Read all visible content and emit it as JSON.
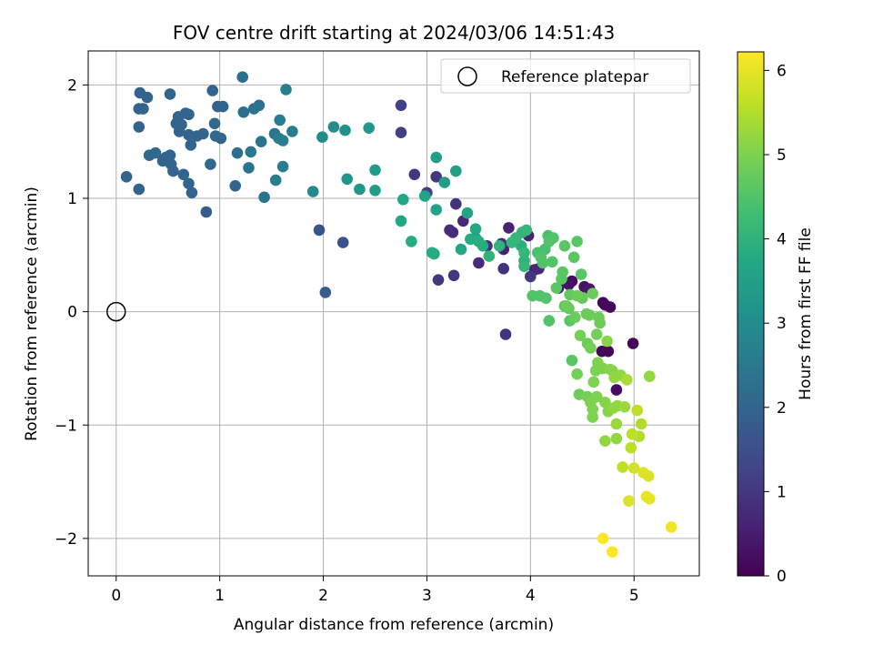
{
  "chart_data": {
    "type": "scatter",
    "title": "FOV centre drift starting at 2024/03/06 14:51:43",
    "xlabel": "Angular distance from reference (arcmin)",
    "ylabel": "Rotation from reference (arcmin)",
    "xlim": [
      -0.27,
      5.63
    ],
    "ylim": [
      -2.33,
      2.3
    ],
    "xticks": [
      0,
      1,
      2,
      3,
      4,
      5
    ],
    "yticks": [
      -2,
      -1,
      0,
      1,
      2
    ],
    "xtick_labels": [
      "0",
      "1",
      "2",
      "3",
      "4",
      "5"
    ],
    "ytick_labels": [
      "−2",
      "−1",
      "0",
      "1",
      "2"
    ],
    "grid": true,
    "colormap": "viridis",
    "colorbar": {
      "label": "Hours from first FF file",
      "range": [
        0,
        6.22
      ],
      "ticks": [
        0,
        1,
        2,
        3,
        4,
        5,
        6
      ],
      "tick_labels": [
        "0",
        "1",
        "2",
        "3",
        "4",
        "5",
        "6"
      ]
    },
    "legend": {
      "position": "upper right",
      "entries": [
        "Reference platepar"
      ]
    },
    "reference_point": {
      "x": 0,
      "y": 0
    },
    "points": [
      [
        0.1,
        1.19,
        2.0
      ],
      [
        0.22,
        1.08,
        2.0
      ],
      [
        0.22,
        1.79,
        2.0
      ],
      [
        0.23,
        1.93,
        2.0
      ],
      [
        0.22,
        1.63,
        2.0
      ],
      [
        0.26,
        1.79,
        2.0
      ],
      [
        0.3,
        1.89,
        2.0
      ],
      [
        0.32,
        1.38,
        2.1
      ],
      [
        0.38,
        1.4,
        2.1
      ],
      [
        0.45,
        1.33,
        2.0
      ],
      [
        0.48,
        1.36,
        2.0
      ],
      [
        0.52,
        1.92,
        2.0
      ],
      [
        0.52,
        1.38,
        2.0
      ],
      [
        0.53,
        1.3,
        2.0
      ],
      [
        0.55,
        1.24,
        2.0
      ],
      [
        0.58,
        1.66,
        2.0
      ],
      [
        0.6,
        1.72,
        2.0
      ],
      [
        0.61,
        1.59,
        2.0
      ],
      [
        0.63,
        1.65,
        2.0
      ],
      [
        0.65,
        1.21,
        2.0
      ],
      [
        0.67,
        1.75,
        2.0
      ],
      [
        0.7,
        1.56,
        2.0
      ],
      [
        0.7,
        1.13,
        2.0
      ],
      [
        0.7,
        1.74,
        2.0
      ],
      [
        0.72,
        1.47,
        2.0
      ],
      [
        0.73,
        1.05,
        2.0
      ],
      [
        0.78,
        1.55,
        2.0
      ],
      [
        0.84,
        1.57,
        2.0
      ],
      [
        0.87,
        0.88,
        1.8
      ],
      [
        0.91,
        1.3,
        2.1
      ],
      [
        0.93,
        1.95,
        2.0
      ],
      [
        0.95,
        1.66,
        2.1
      ],
      [
        0.96,
        1.55,
        2.1
      ],
      [
        0.98,
        1.81,
        2.0
      ],
      [
        1.01,
        1.53,
        2.0
      ],
      [
        1.03,
        1.81,
        2.0
      ],
      [
        1.15,
        1.11,
        2.0
      ],
      [
        1.17,
        1.4,
        2.3
      ],
      [
        1.22,
        2.07,
        2.3
      ],
      [
        1.23,
        1.76,
        2.3
      ],
      [
        1.28,
        1.27,
        2.4
      ],
      [
        1.3,
        1.41,
        2.5
      ],
      [
        1.33,
        1.79,
        2.4
      ],
      [
        1.38,
        1.82,
        2.4
      ],
      [
        1.4,
        1.5,
        2.4
      ],
      [
        1.43,
        1.01,
        2.4
      ],
      [
        1.53,
        1.57,
        2.4
      ],
      [
        1.54,
        1.16,
        2.6
      ],
      [
        1.57,
        1.53,
        2.6
      ],
      [
        1.58,
        1.69,
        2.6
      ],
      [
        1.61,
        1.51,
        2.6
      ],
      [
        1.61,
        1.28,
        2.6
      ],
      [
        1.64,
        1.96,
        2.6
      ],
      [
        1.7,
        1.59,
        2.6
      ],
      [
        1.9,
        1.06,
        2.9
      ],
      [
        1.96,
        0.72,
        1.6
      ],
      [
        1.99,
        1.54,
        3.0
      ],
      [
        2.02,
        0.17,
        1.8
      ],
      [
        2.1,
        1.63,
        3.0
      ],
      [
        2.19,
        0.61,
        1.6
      ],
      [
        2.21,
        1.6,
        3.1
      ],
      [
        2.23,
        1.17,
        3.2
      ],
      [
        2.35,
        1.08,
        3.3
      ],
      [
        2.44,
        1.62,
        3.3
      ],
      [
        2.5,
        1.25,
        3.4
      ],
      [
        2.5,
        1.07,
        3.4
      ],
      [
        2.75,
        1.82,
        1.2
      ],
      [
        2.75,
        1.58,
        1.2
      ],
      [
        2.75,
        0.8,
        3.7
      ],
      [
        2.77,
        0.99,
        3.7
      ],
      [
        2.85,
        0.62,
        3.8
      ],
      [
        2.88,
        1.21,
        1.0
      ],
      [
        2.98,
        1.02,
        3.6
      ],
      [
        3.0,
        1.05,
        1.2
      ],
      [
        3.05,
        0.52,
        3.8
      ],
      [
        3.07,
        0.51,
        3.8
      ],
      [
        3.09,
        1.36,
        3.5
      ],
      [
        3.09,
        1.19,
        1.0
      ],
      [
        3.09,
        0.9,
        3.6
      ],
      [
        3.11,
        0.28,
        1.0
      ],
      [
        3.17,
        1.14,
        3.4
      ],
      [
        3.22,
        0.72,
        0.8
      ],
      [
        3.25,
        0.7,
        0.8
      ],
      [
        3.26,
        0.32,
        1.0
      ],
      [
        3.28,
        1.24,
        3.5
      ],
      [
        3.28,
        0.95,
        0.9
      ],
      [
        3.33,
        0.55,
        3.7
      ],
      [
        3.35,
        0.8,
        0.7
      ],
      [
        3.39,
        0.87,
        3.6
      ],
      [
        3.42,
        0.64,
        3.8
      ],
      [
        3.47,
        0.73,
        3.7
      ],
      [
        3.47,
        0.65,
        3.7
      ],
      [
        3.5,
        0.62,
        3.9
      ],
      [
        3.5,
        0.43,
        0.8
      ],
      [
        3.54,
        0.58,
        3.8
      ],
      [
        3.58,
        0.58,
        0.8
      ],
      [
        3.6,
        0.49,
        4.0
      ],
      [
        3.7,
        0.58,
        4.0
      ],
      [
        3.72,
        0.6,
        0.8
      ],
      [
        3.74,
        0.55,
        0.6
      ],
      [
        3.74,
        0.38,
        0.9
      ],
      [
        3.76,
        -0.2,
        0.9
      ],
      [
        3.79,
        0.74,
        0.6
      ],
      [
        3.82,
        0.61,
        4.1
      ],
      [
        3.86,
        0.65,
        4.1
      ],
      [
        3.91,
        0.58,
        3.9
      ],
      [
        3.92,
        0.7,
        4.0
      ],
      [
        3.94,
        0.45,
        4.0
      ],
      [
        3.94,
        0.52,
        4.1
      ],
      [
        3.94,
        0.4,
        4.1
      ],
      [
        3.96,
        0.72,
        4.1
      ],
      [
        3.98,
        0.67,
        0.6
      ],
      [
        4.0,
        0.31,
        1.0
      ],
      [
        4.02,
        0.14,
        4.5
      ],
      [
        4.04,
        0.37,
        0.6
      ],
      [
        4.07,
        0.52,
        4.4
      ],
      [
        4.08,
        0.38,
        0.7
      ],
      [
        4.09,
        0.14,
        4.5
      ],
      [
        4.1,
        0.48,
        4.5
      ],
      [
        4.12,
        0.43,
        4.5
      ],
      [
        4.14,
        0.55,
        4.4
      ],
      [
        4.15,
        0.12,
        4.5
      ],
      [
        4.17,
        0.67,
        4.4
      ],
      [
        4.18,
        0.62,
        4.5
      ],
      [
        4.18,
        -0.08,
        4.5
      ],
      [
        4.21,
        0.44,
        4.5
      ],
      [
        4.22,
        0.65,
        4.5
      ],
      [
        4.25,
        0.21,
        4.6
      ],
      [
        4.27,
        0.21,
        0.4
      ],
      [
        4.3,
        0.29,
        4.6
      ],
      [
        4.31,
        0.35,
        4.6
      ],
      [
        4.33,
        0.58,
        4.6
      ],
      [
        4.33,
        0.05,
        4.6
      ],
      [
        4.35,
        0.05,
        4.8
      ],
      [
        4.37,
        0.03,
        4.7
      ],
      [
        4.37,
        0.24,
        0.3
      ],
      [
        4.38,
        -0.08,
        4.6
      ],
      [
        4.38,
        0.15,
        4.7
      ],
      [
        4.4,
        0.27,
        0.2
      ],
      [
        4.4,
        -0.43,
        4.6
      ],
      [
        4.42,
        0.48,
        4.6
      ],
      [
        4.43,
        -0.05,
        4.8
      ],
      [
        4.45,
        0.62,
        4.6
      ],
      [
        4.45,
        0.14,
        4.8
      ],
      [
        4.45,
        -0.55,
        4.9
      ],
      [
        4.47,
        -0.73,
        4.8
      ],
      [
        4.48,
        -0.21,
        4.9
      ],
      [
        4.49,
        0.33,
        4.6
      ],
      [
        4.5,
        0.12,
        4.7
      ],
      [
        4.52,
        0.22,
        0.3
      ],
      [
        4.54,
        -0.02,
        4.8
      ],
      [
        4.55,
        -0.28,
        4.8
      ],
      [
        4.55,
        -0.75,
        4.9
      ],
      [
        4.57,
        -0.03,
        4.8
      ],
      [
        4.57,
        0.2,
        0.4
      ],
      [
        4.58,
        -0.8,
        5.0
      ],
      [
        4.58,
        -0.32,
        4.9
      ],
      [
        4.6,
        -0.93,
        5.0
      ],
      [
        4.6,
        0.16,
        4.8
      ],
      [
        4.6,
        -0.86,
        5.0
      ],
      [
        4.61,
        -0.62,
        5.0
      ],
      [
        4.63,
        -0.52,
        5.0
      ],
      [
        4.64,
        -0.75,
        5.0
      ],
      [
        4.64,
        -0.2,
        4.9
      ],
      [
        4.65,
        -0.45,
        5.0
      ],
      [
        4.66,
        -0.05,
        4.8
      ],
      [
        4.67,
        -0.1,
        4.8
      ],
      [
        4.69,
        -0.35,
        0.1
      ],
      [
        4.7,
        -0.5,
        5.0
      ],
      [
        4.7,
        0.08,
        0.1
      ],
      [
        4.72,
        -0.8,
        5.1
      ],
      [
        4.72,
        -1.14,
        5.2
      ],
      [
        4.72,
        0.06,
        0.1
      ],
      [
        4.74,
        -0.26,
        5.1
      ],
      [
        4.75,
        -0.35,
        0.1
      ],
      [
        4.75,
        -0.88,
        5.1
      ],
      [
        4.77,
        -0.51,
        5.1
      ],
      [
        4.77,
        0.04,
        0.1
      ],
      [
        4.79,
        -0.52,
        5.1
      ],
      [
        4.8,
        -0.85,
        5.2
      ],
      [
        4.81,
        -0.58,
        5.2
      ],
      [
        4.83,
        -1.12,
        5.2
      ],
      [
        4.83,
        -0.99,
        5.3
      ],
      [
        4.83,
        -0.69,
        0.2
      ],
      [
        4.84,
        -0.83,
        5.2
      ],
      [
        4.87,
        -0.56,
        5.2
      ],
      [
        4.89,
        -1.37,
        5.6
      ],
      [
        4.91,
        -0.84,
        5.3
      ],
      [
        4.93,
        -0.6,
        5.4
      ],
      [
        4.95,
        -1.67,
        5.9
      ],
      [
        4.97,
        -1.2,
        5.6
      ],
      [
        4.98,
        -1.08,
        5.6
      ],
      [
        4.99,
        -0.28,
        0.1
      ],
      [
        5.0,
        -1.38,
        5.8
      ],
      [
        5.03,
        -0.87,
        5.6
      ],
      [
        5.05,
        -1.1,
        5.5
      ],
      [
        5.07,
        -0.99,
        5.5
      ],
      [
        5.09,
        -1.42,
        5.9
      ],
      [
        5.12,
        -1.63,
        6.0
      ],
      [
        5.14,
        -1.45,
        5.9
      ],
      [
        5.15,
        -0.57,
        5.2
      ],
      [
        5.15,
        -1.65,
        6.0
      ],
      [
        5.36,
        -1.9,
        6.1
      ],
      [
        4.7,
        -2.0,
        6.2
      ],
      [
        4.79,
        -2.12,
        6.2
      ]
    ]
  }
}
